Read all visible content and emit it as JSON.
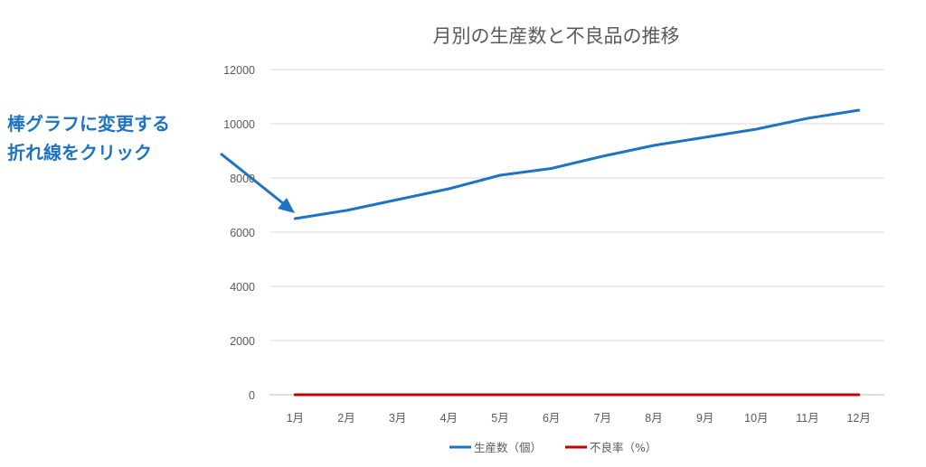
{
  "annotation": {
    "lines": [
      "棒グラフに変更する",
      "折れ線をクリック"
    ],
    "color": "#1f73c4"
  },
  "chart_data": {
    "type": "line",
    "title": "月別の生産数と不良品の推移",
    "xlabel": "",
    "ylabel": "",
    "categories": [
      "1月",
      "2月",
      "3月",
      "4月",
      "5月",
      "6月",
      "7月",
      "8月",
      "9月",
      "10月",
      "11月",
      "12月"
    ],
    "ylim": [
      0,
      12000
    ],
    "yticks": [
      0,
      2000,
      4000,
      6000,
      8000,
      10000,
      12000
    ],
    "grid": true,
    "legend_position": "bottom",
    "series": [
      {
        "name": "生産数（個）",
        "color": "#1f73c4",
        "values": [
          6500,
          6800,
          7200,
          7600,
          8100,
          8350,
          8800,
          9200,
          9500,
          9800,
          10200,
          10500
        ]
      },
      {
        "name": "不良率（%）",
        "color": "#c00000",
        "values": [
          2,
          2,
          2,
          2,
          2,
          2,
          2,
          2,
          2,
          2,
          2,
          1
        ]
      }
    ]
  }
}
